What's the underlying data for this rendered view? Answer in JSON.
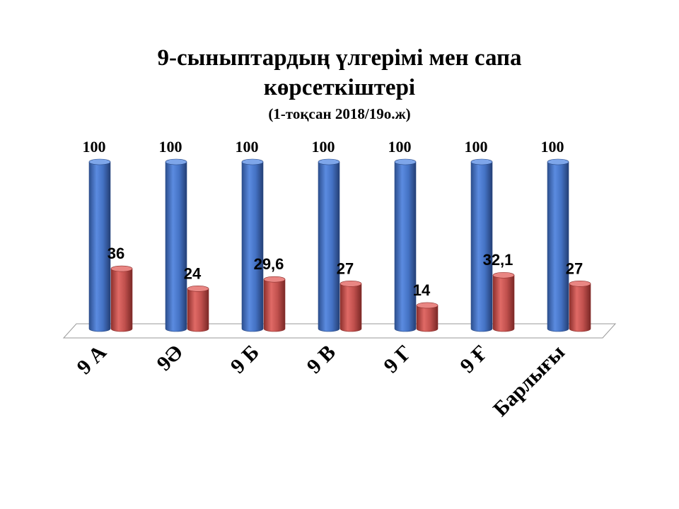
{
  "chart_data": {
    "type": "bar",
    "title": "9-сыныптардың үлгерімі мен сапа көрсеткіштері",
    "title_line1": "9-сыныптардың үлгерімі мен сапа",
    "title_line2": "көрсеткіштері",
    "subtitle": "(1-тоқсан 2018/19о.ж)",
    "categories": [
      "9 А",
      "9Ә",
      "9 Б",
      "9 В",
      "9 Г",
      "9 Ғ",
      "Барлығы"
    ],
    "series": [
      {
        "values": [
          100,
          100,
          100,
          100,
          100,
          100,
          100
        ],
        "labels": [
          "100",
          "100",
          "100",
          "100",
          "100",
          "100",
          "100"
        ],
        "color": "#4472C4"
      },
      {
        "values": [
          36,
          24,
          29.6,
          27,
          14,
          32.1,
          27
        ],
        "labels": [
          "36",
          "24",
          "29,6",
          "27",
          "14",
          "32,1",
          "27"
        ],
        "color": "#C0504D"
      }
    ],
    "ylim": [
      0,
      100
    ],
    "xlabel": "",
    "ylabel": "",
    "grid": false,
    "legend": "none",
    "style": "3d-cylinder"
  }
}
